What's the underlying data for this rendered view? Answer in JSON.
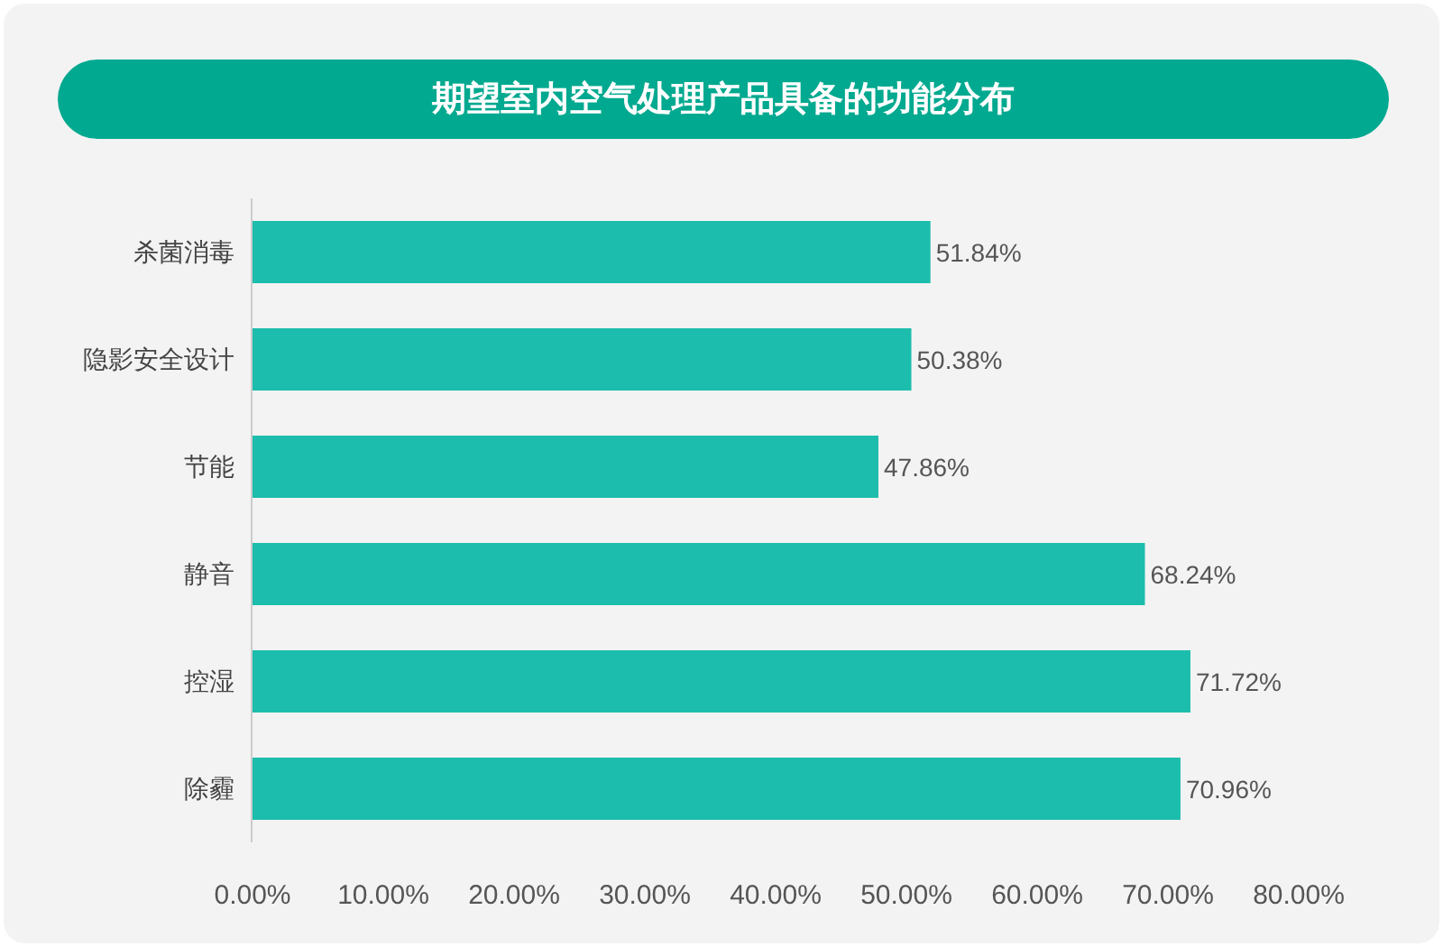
{
  "chart_data": {
    "type": "bar",
    "orientation": "horizontal",
    "title": "期望室内空气处理产品具备的功能分布",
    "categories": [
      "杀菌消毒",
      "隐影安全设计",
      "节能",
      "静音",
      "控湿",
      "除霾"
    ],
    "values": [
      51.84,
      50.38,
      47.86,
      68.24,
      71.72,
      70.96
    ],
    "value_labels": [
      "51.84%",
      "50.38%",
      "47.86%",
      "68.24%",
      "71.72%",
      "70.96%"
    ],
    "color": "#1cbdac",
    "xlim": [
      0,
      80
    ],
    "xticks": [
      {
        "value": 0,
        "label": "0.00%"
      },
      {
        "value": 10,
        "label": "10.00%"
      },
      {
        "value": 20,
        "label": "20.00%"
      },
      {
        "value": 30,
        "label": "30.00%"
      },
      {
        "value": 40,
        "label": "40.00%"
      },
      {
        "value": 50,
        "label": "50.00%"
      },
      {
        "value": 60,
        "label": "60.00%"
      },
      {
        "value": 70,
        "label": "70.00%"
      },
      {
        "value": 80,
        "label": "80.00%"
      }
    ],
    "grid": false
  }
}
